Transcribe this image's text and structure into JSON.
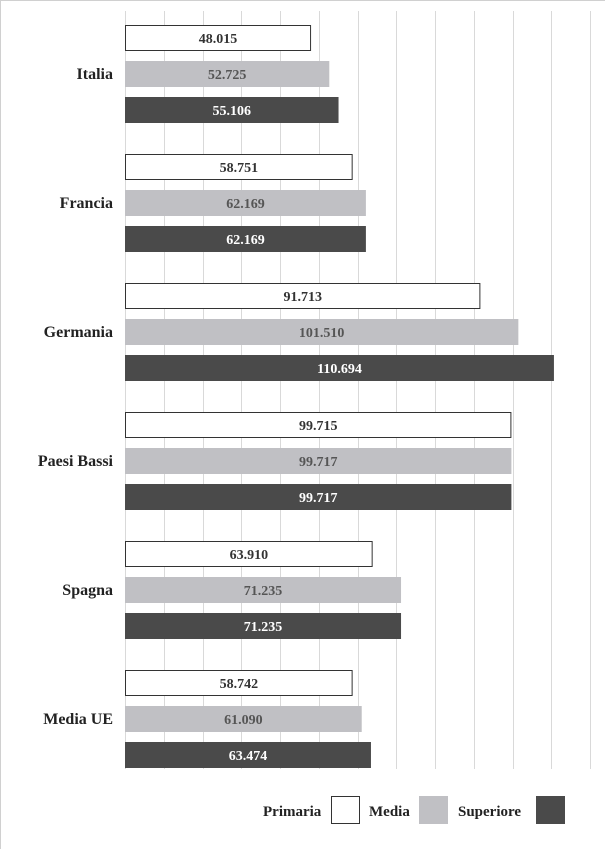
{
  "chart_data": {
    "type": "bar",
    "orientation": "horizontal",
    "categories": [
      "Italia",
      "Francia",
      "Germania",
      "Paesi Bassi",
      "Spagna",
      "Media UE"
    ],
    "series": [
      {
        "name": "Primaria",
        "color": "#ffffff",
        "values": [
          48015,
          58751,
          91713,
          99715,
          63910,
          58742
        ],
        "labels": [
          "48.015",
          "58.751",
          "91.713",
          "99.715",
          "63.910",
          "58.742"
        ]
      },
      {
        "name": "Media",
        "color": "#c0c0c4",
        "values": [
          52725,
          62169,
          101510,
          99717,
          71235,
          61090
        ],
        "labels": [
          "52.725",
          "62.169",
          "101.510",
          "99.717",
          "71.235",
          "61.090"
        ]
      },
      {
        "name": "Superiore",
        "color": "#4a4a4a",
        "values": [
          55106,
          62169,
          110694,
          99717,
          71235,
          63474
        ],
        "labels": [
          "55.106",
          "62.169",
          "110.694",
          "99.717",
          "71.235",
          "63.474"
        ]
      }
    ],
    "xlim": [
      0,
      120000
    ],
    "gridlines": true,
    "legend_position": "bottom"
  }
}
